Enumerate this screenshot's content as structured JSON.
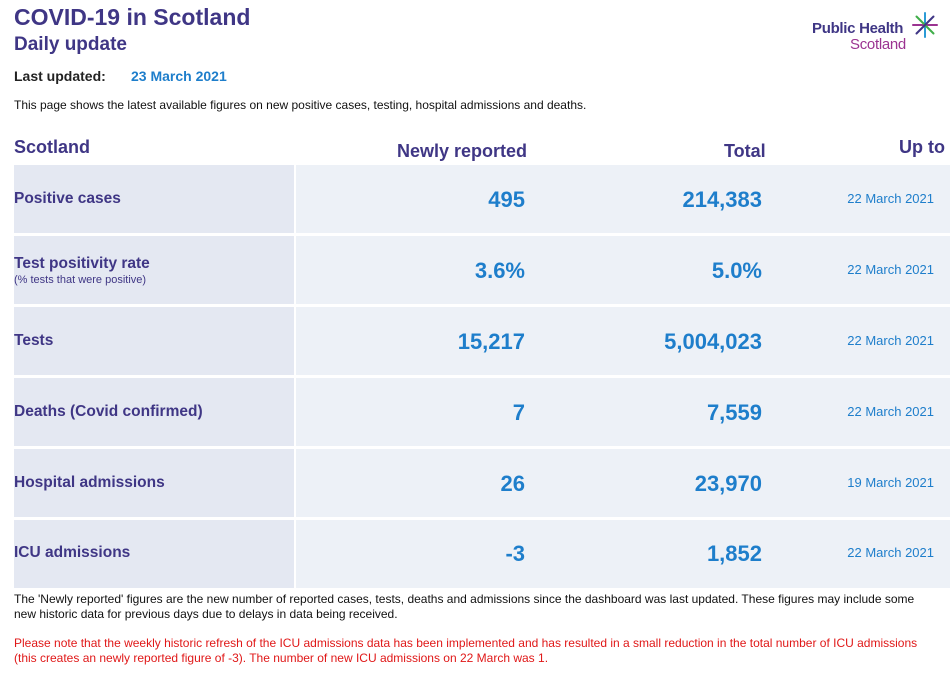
{
  "header": {
    "title": "COVID-19 in Scotland",
    "subtitle": "Daily update",
    "logo_line1": "Public Health",
    "logo_line2": "Scotland",
    "last_updated_label": "Last updated:",
    "last_updated_value": "23 March 2021",
    "intro": "This page shows the latest available figures on new positive cases, testing, hospital admissions and deaths."
  },
  "table": {
    "headers": {
      "area": "Scotland",
      "newly_reported": "Newly reported",
      "total": "Total",
      "up_to": "Up to"
    },
    "rows": [
      {
        "label": "Positive cases",
        "sublabel": "",
        "new": "495",
        "total": "214,383",
        "up_to": "22 March 2021"
      },
      {
        "label": "Test positivity rate",
        "sublabel": "(% tests that were positive)",
        "new": "3.6%",
        "total": "5.0%",
        "up_to": "22 March 2021"
      },
      {
        "label": "Tests",
        "sublabel": "",
        "new": "15,217",
        "total": "5,004,023",
        "up_to": "22 March 2021"
      },
      {
        "label": "Deaths (Covid confirmed)",
        "sublabel": "",
        "new": "7",
        "total": "7,559",
        "up_to": "22 March 2021"
      },
      {
        "label": "Hospital admissions",
        "sublabel": "",
        "new": "26",
        "total": "23,970",
        "up_to": "19 March 2021"
      },
      {
        "label": "ICU admissions",
        "sublabel": "",
        "new": "-3",
        "total": "1,852",
        "up_to": "22 March 2021"
      }
    ]
  },
  "notes": {
    "newly_reported_note": "The 'Newly reported' figures are the new number of reported cases, tests, deaths and admissions since the dashboard was last updated. These figures may include some new historic data for previous days due to delays in data being received.",
    "icu_note": "Please note that the weekly historic refresh of the ICU admissions data has been implemented and has resulted in a small reduction in the total number of ICU admissions (this creates an newly reported figure of -3). The number of new ICU admissions on 22 March was 1."
  },
  "colors": {
    "heading_purple": "#3f3685",
    "value_blue": "#1e7ecb",
    "warning_red": "#e01818",
    "label_bg": "#e4e8f2",
    "data_bg": "#edf1f7"
  }
}
